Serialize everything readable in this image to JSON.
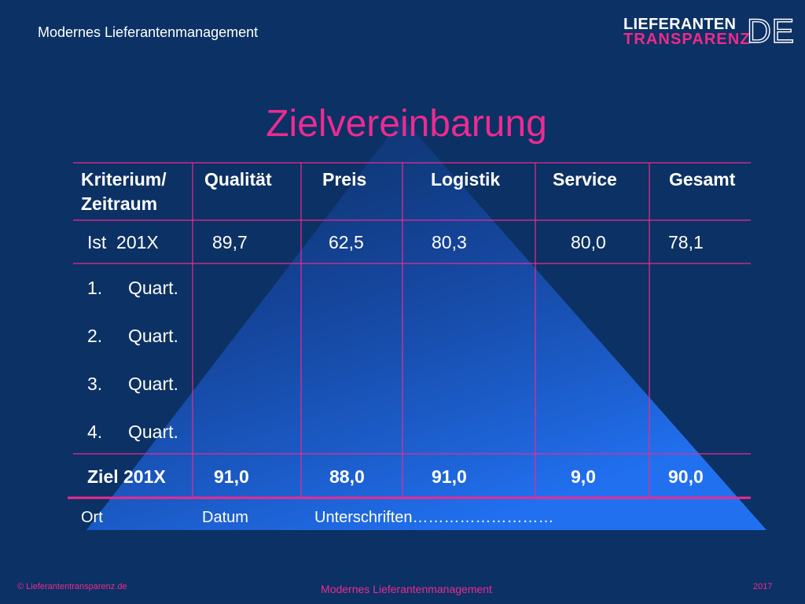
{
  "header": {
    "title": "Modernes Lieferantenmanagement"
  },
  "logo": {
    "line1": "LIEFERANTEN",
    "line2": "TRANSPARENZ",
    "suffix": "DE"
  },
  "slide": {
    "title": "Zielvereinbarung"
  },
  "colors": {
    "background": "#0c3164",
    "accent": "#ec2b90",
    "pyramid": "#1a5ee0",
    "text": "#ffffff"
  },
  "table": {
    "header": {
      "criterion_line1": "Kriterium/",
      "criterion_line2": "Zeitraum",
      "columns": [
        "Qualität",
        "Preis",
        "Logistik",
        "Service",
        "Gesamt"
      ]
    },
    "actual": {
      "label": "Ist  201X",
      "values": [
        "89,7",
        "62,5",
        "80,3",
        "80,0",
        "78,1"
      ]
    },
    "quarters": [
      {
        "num": "1.",
        "label": "Quart."
      },
      {
        "num": "2.",
        "label": "Quart."
      },
      {
        "num": "3.",
        "label": "Quart."
      },
      {
        "num": "4.",
        "label": "Quart."
      }
    ],
    "target": {
      "label": "Ziel 201X",
      "values": [
        "91,0",
        "88,0",
        "91,0",
        "9,0",
        "90,0"
      ]
    }
  },
  "signature": {
    "place": "Ort",
    "date": "Datum",
    "signatures": "Unterschriften………………………"
  },
  "footer": {
    "copyright": "© Lieferantentransparenz.de",
    "center": "Modernes Lieferantenmanagement",
    "year": "2017"
  }
}
